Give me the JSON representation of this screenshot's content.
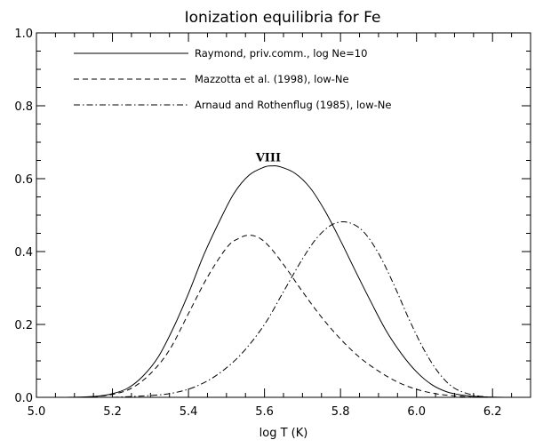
{
  "chart_data": {
    "type": "line",
    "title": "Ionization equilibria for Fe",
    "xlabel": "log T (K)",
    "ylabel": "",
    "xlim": [
      5.0,
      6.3
    ],
    "ylim": [
      0.0,
      1.0
    ],
    "x_ticks": [
      "5.0",
      "5.2",
      "5.4",
      "5.6",
      "5.8",
      "6.0",
      "6.2"
    ],
    "y_ticks": [
      "0.0",
      "0.2",
      "0.4",
      "0.6",
      "0.8",
      "1.0"
    ],
    "annotation": {
      "text": "VIII",
      "x": 5.61,
      "y": 0.655
    },
    "series": [
      {
        "name": "Raymond, priv.comm., log Ne=10",
        "style": "solid",
        "x": [
          5.08,
          5.12,
          5.16,
          5.2,
          5.24,
          5.28,
          5.32,
          5.36,
          5.4,
          5.44,
          5.48,
          5.52,
          5.56,
          5.6,
          5.62,
          5.64,
          5.68,
          5.72,
          5.76,
          5.8,
          5.84,
          5.88,
          5.92,
          5.96,
          6.0,
          6.04,
          6.08,
          6.12,
          6.16,
          6.2,
          6.24
        ],
        "y": [
          0.0,
          0.001,
          0.003,
          0.01,
          0.025,
          0.058,
          0.11,
          0.19,
          0.285,
          0.39,
          0.48,
          0.56,
          0.61,
          0.632,
          0.635,
          0.633,
          0.615,
          0.575,
          0.51,
          0.43,
          0.345,
          0.262,
          0.183,
          0.12,
          0.07,
          0.035,
          0.015,
          0.006,
          0.002,
          0.0005,
          0.0
        ]
      },
      {
        "name": "Mazzotta et al. (1998), low-Ne",
        "style": "dashed",
        "x": [
          5.1,
          5.15,
          5.2,
          5.25,
          5.3,
          5.35,
          5.4,
          5.45,
          5.5,
          5.53,
          5.56,
          5.59,
          5.62,
          5.66,
          5.7,
          5.75,
          5.8,
          5.85,
          5.9,
          5.95,
          6.0,
          6.05,
          6.1,
          6.15
        ],
        "y": [
          0.0,
          0.002,
          0.008,
          0.025,
          0.065,
          0.13,
          0.23,
          0.33,
          0.41,
          0.435,
          0.445,
          0.435,
          0.405,
          0.35,
          0.29,
          0.22,
          0.16,
          0.11,
          0.072,
          0.042,
          0.022,
          0.01,
          0.004,
          0.0
        ]
      },
      {
        "name": "Arnaud and Rothenflug (1985), low-Ne",
        "style": "dashdot",
        "x": [
          5.2,
          5.3,
          5.36,
          5.42,
          5.48,
          5.54,
          5.6,
          5.65,
          5.7,
          5.74,
          5.78,
          5.82,
          5.86,
          5.9,
          5.94,
          5.98,
          6.02,
          6.06,
          6.1,
          6.15,
          6.2
        ],
        "y": [
          0.0,
          0.005,
          0.012,
          0.03,
          0.065,
          0.12,
          0.2,
          0.29,
          0.38,
          0.44,
          0.475,
          0.48,
          0.455,
          0.395,
          0.31,
          0.215,
          0.13,
          0.065,
          0.025,
          0.006,
          0.0
        ]
      }
    ],
    "legend": {
      "position": "top-left",
      "entries": [
        "Raymond, priv.comm., log Ne=10",
        "Mazzotta et al. (1998), low-Ne",
        "Arnaud and Rothenflug (1985), low-Ne"
      ]
    },
    "grid": false
  }
}
